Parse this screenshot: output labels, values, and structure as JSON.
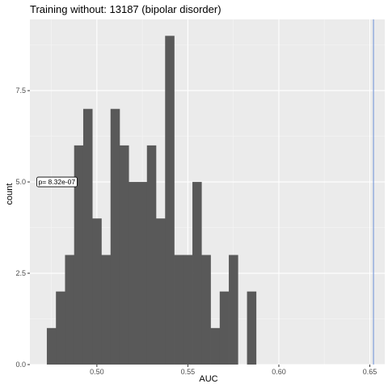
{
  "chart_data": {
    "type": "bar",
    "title": "Training without: 13187 (bipolar disorder)",
    "xlabel": "AUC",
    "ylabel": "count",
    "xlim": [
      0.4632,
      0.6582
    ],
    "ylim": [
      0,
      9.45
    ],
    "x_ticks": [
      0.5,
      0.55,
      0.6,
      0.65
    ],
    "x_tick_labels": [
      "0.50",
      "0.55",
      "0.60",
      "0.65"
    ],
    "y_ticks": [
      0,
      2.5,
      5.0,
      7.5
    ],
    "y_tick_labels": [
      "0.0",
      "2.5",
      "5.0",
      "7.5"
    ],
    "grid": true,
    "bin_width": 0.005,
    "bins": [
      {
        "x0": 0.4725,
        "count": 1
      },
      {
        "x0": 0.4775,
        "count": 2
      },
      {
        "x0": 0.4825,
        "count": 3
      },
      {
        "x0": 0.4875,
        "count": 6
      },
      {
        "x0": 0.4925,
        "count": 7
      },
      {
        "x0": 0.4975,
        "count": 4
      },
      {
        "x0": 0.5025,
        "count": 3
      },
      {
        "x0": 0.5075,
        "count": 7
      },
      {
        "x0": 0.5125,
        "count": 6
      },
      {
        "x0": 0.5175,
        "count": 5
      },
      {
        "x0": 0.5225,
        "count": 5
      },
      {
        "x0": 0.5275,
        "count": 6
      },
      {
        "x0": 0.5325,
        "count": 4
      },
      {
        "x0": 0.5375,
        "count": 9
      },
      {
        "x0": 0.5425,
        "count": 3
      },
      {
        "x0": 0.5475,
        "count": 3
      },
      {
        "x0": 0.5525,
        "count": 5
      },
      {
        "x0": 0.5575,
        "count": 3
      },
      {
        "x0": 0.5625,
        "count": 1
      },
      {
        "x0": 0.5675,
        "count": 2
      },
      {
        "x0": 0.5725,
        "count": 3
      },
      {
        "x0": 0.5775,
        "count": 0
      },
      {
        "x0": 0.5825,
        "count": 2
      }
    ],
    "reference_line": {
      "x": 0.652,
      "color": "#6a8fd6"
    },
    "annotation": {
      "text": "p= 8.32e-07",
      "x": 0.478,
      "y": 5.0
    },
    "colors": {
      "panel": "#ebebeb",
      "grid_major": "#ffffff",
      "grid_minor": "#f5f5f5",
      "bar": "#595959"
    }
  }
}
